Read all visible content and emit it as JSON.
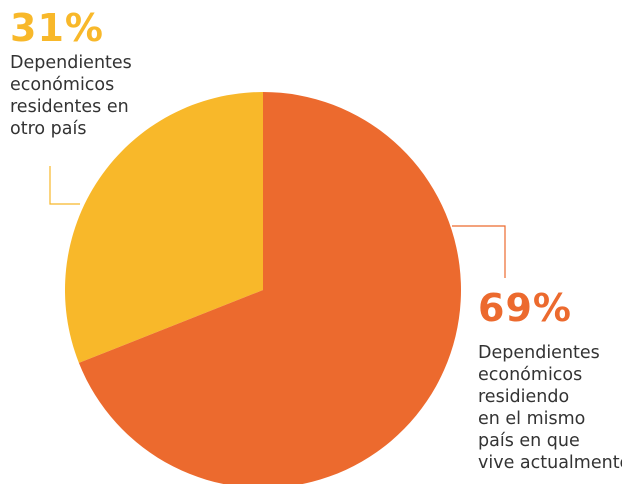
{
  "chart_data": {
    "type": "pie",
    "title": "",
    "slices": [
      {
        "label_lines": [
          "Dependientes",
          "económicos",
          "residentes en",
          "otro país"
        ],
        "percent_label": "31%",
        "value": 31,
        "color": "#F8B82A"
      },
      {
        "label_lines": [
          "Dependientes",
          "económicos",
          "residiendo",
          "en el mismo",
          "país en que",
          "vive actualmente"
        ],
        "percent_label": "69%",
        "value": 69,
        "color": "#EC6A2E"
      }
    ],
    "legend": "none"
  }
}
